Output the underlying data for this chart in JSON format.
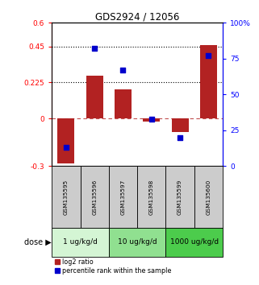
{
  "title": "GDS2924 / 12056",
  "samples": [
    "GSM135595",
    "GSM135596",
    "GSM135597",
    "GSM135598",
    "GSM135599",
    "GSM135600"
  ],
  "log2_ratio": [
    -0.285,
    0.27,
    0.18,
    -0.018,
    -0.085,
    0.46
  ],
  "percentile_rank": [
    13.0,
    82.0,
    67.0,
    33.0,
    20.0,
    77.0
  ],
  "bar_color": "#b22222",
  "dot_color": "#0000cc",
  "ylim_left": [
    -0.3,
    0.6
  ],
  "ylim_right": [
    0,
    100
  ],
  "yticks_left": [
    -0.3,
    0,
    0.225,
    0.45,
    0.6
  ],
  "yticks_right": [
    0,
    25,
    50,
    75,
    100
  ],
  "ytick_labels_left": [
    "-0.3",
    "0",
    "0.225",
    "0.45",
    "0.6"
  ],
  "ytick_labels_right": [
    "0",
    "25",
    "50",
    "75",
    "100%"
  ],
  "hlines_dotted": [
    0.225,
    0.45
  ],
  "hline_dashed": 0,
  "doses": [
    {
      "label": "1 ug/kg/d",
      "samples": [
        0,
        1
      ],
      "color": "#d4f5d4"
    },
    {
      "label": "10 ug/kg/d",
      "samples": [
        2,
        3
      ],
      "color": "#90e090"
    },
    {
      "label": "1000 ug/kg/d",
      "samples": [
        4,
        5
      ],
      "color": "#4ccc4c"
    }
  ],
  "dose_label": "dose",
  "legend_red": "log2 ratio",
  "legend_blue": "percentile rank within the sample",
  "bar_width": 0.6
}
